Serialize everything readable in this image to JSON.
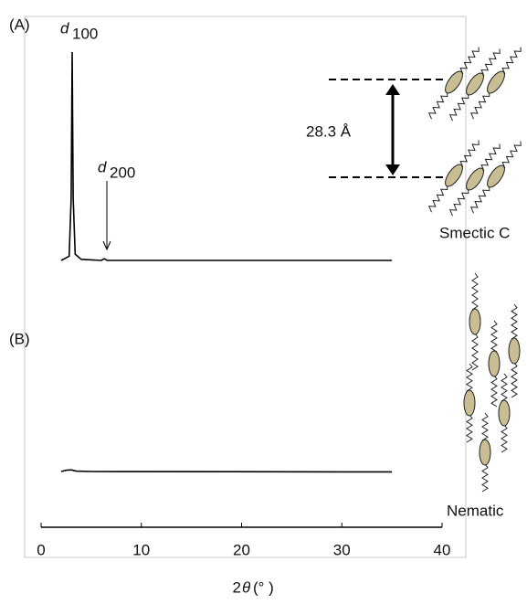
{
  "chart_data": [
    {
      "type": "line",
      "panel_label": "(A)",
      "peak_labels": [
        {
          "symbol": "d",
          "subscript": "100"
        },
        {
          "symbol": "d",
          "subscript": "200"
        }
      ],
      "annotations": {
        "spacing": "28.3 Å",
        "phase": "Smectic C"
      },
      "xlim": [
        0,
        40
      ],
      "ylim": [
        0,
        100
      ],
      "x": [
        2,
        2.8,
        3.0,
        3.1,
        3.2,
        3.4,
        4,
        6.0,
        6.3,
        6.6,
        10,
        35
      ],
      "values": [
        0,
        2,
        30,
        100,
        30,
        3,
        0.5,
        0,
        0.8,
        0,
        0,
        0
      ],
      "color": "#000000"
    },
    {
      "type": "line",
      "panel_label": "(B)",
      "annotations": {
        "phase": "Nematic"
      },
      "xlim": [
        0,
        40
      ],
      "ylim": [
        0,
        100
      ],
      "xticks": [
        0,
        10,
        20,
        30,
        40
      ],
      "x_label_parts": [
        "2",
        "θ",
        "(°  )"
      ],
      "x": [
        2,
        2.5,
        3,
        3.5,
        5,
        35
      ],
      "values": [
        0,
        0.6,
        0.8,
        0.2,
        0,
        -0.2
      ],
      "color": "#000000"
    }
  ]
}
